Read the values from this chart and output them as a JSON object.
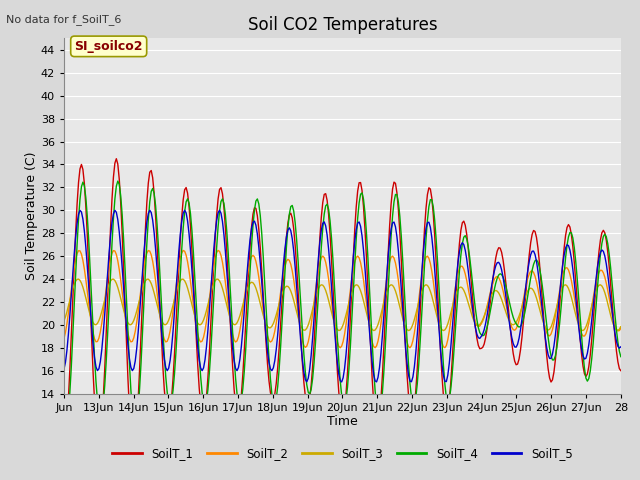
{
  "title": "Soil CO2 Temperatures",
  "xlabel": "Time",
  "ylabel": "Soil Temperature (C)",
  "top_left_note": "No data for f_SoilT_6",
  "annotation_label": "SI_soilco2",
  "ylim": [
    14,
    45
  ],
  "yticks": [
    14,
    16,
    18,
    20,
    22,
    24,
    26,
    28,
    30,
    32,
    34,
    36,
    38,
    40,
    42,
    44
  ],
  "xtick_labels": [
    "Jun",
    "13Jun",
    "14Jun",
    "15Jun",
    "16Jun",
    "17Jun",
    "18Jun",
    "19Jun",
    "20Jun",
    "21Jun",
    "22Jun",
    "23Jun",
    "24Jun",
    "25Jun",
    "26Jun",
    "27Jun",
    "28"
  ],
  "series_colors": {
    "SoilT_1": "#cc0000",
    "SoilT_2": "#ff8800",
    "SoilT_3": "#ccaa00",
    "SoilT_4": "#00aa00",
    "SoilT_5": "#0000cc"
  },
  "bg_color": "#d9d9d9",
  "plot_bg_color": "#e8e8e8",
  "grid_color": "#ffffff"
}
